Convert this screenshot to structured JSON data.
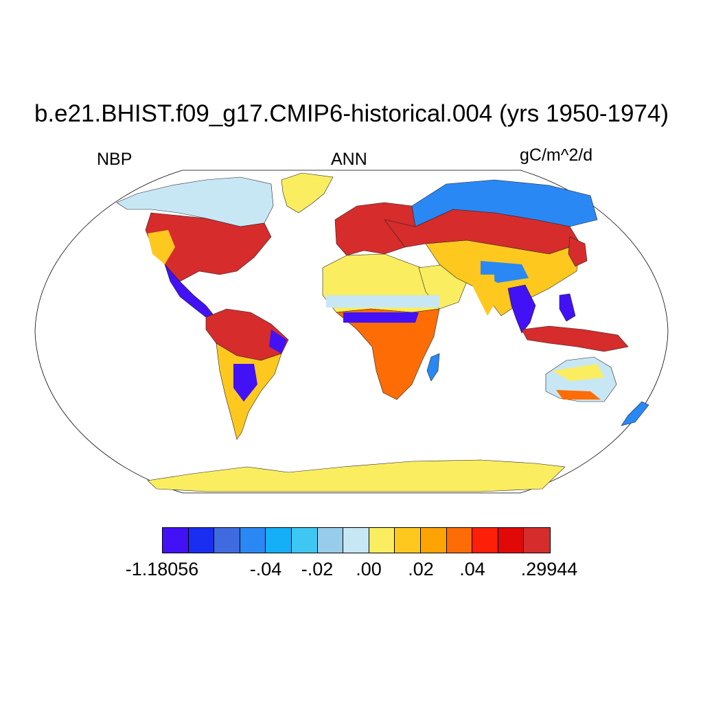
{
  "title": "b.e21.BHIST.f09_g17.CMIP6-historical.004 (yrs 1950-1974)",
  "variable": "NBP",
  "season": "ANN",
  "units": "gC/m^2/d",
  "colorbar": {
    "colors": [
      "#4211f5",
      "#1a2ef2",
      "#3f6ae0",
      "#2a88f5",
      "#14aff7",
      "#3dc7f2",
      "#97cdea",
      "#c8e7f5",
      "#fbed60",
      "#fec81f",
      "#fea304",
      "#fe6c05",
      "#fe1f09",
      "#e10808",
      "#d62c2c"
    ],
    "tick_labels": [
      "-1.18056",
      "-.04",
      "-.02",
      ".00",
      ".02",
      ".04",
      ".29944"
    ]
  },
  "map": {
    "projection": "Robinson",
    "land_colors": {
      "strong_sink": "#d62c2c",
      "sink": "#fe6c05",
      "weak_sink": "#fec81f",
      "neutral": "#fbed60",
      "weak_source": "#c8e7f5",
      "source": "#2a88f5",
      "strong_source": "#4211f5"
    }
  }
}
